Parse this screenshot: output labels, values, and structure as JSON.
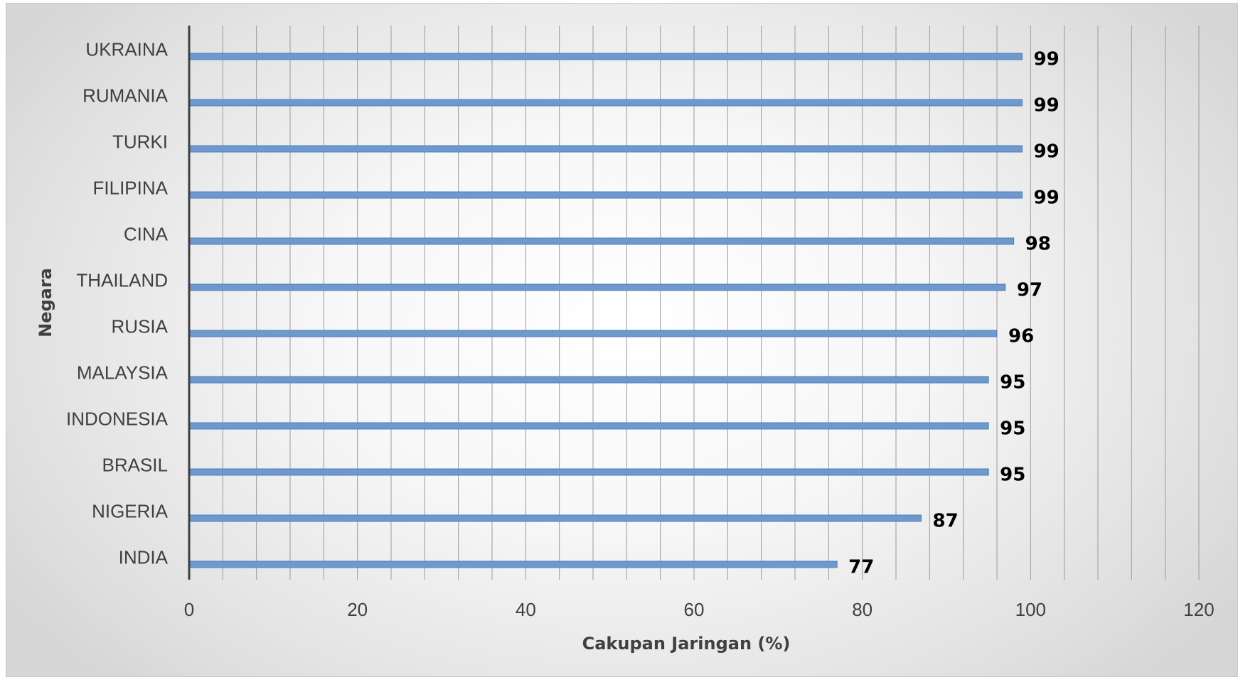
{
  "chart_data": {
    "type": "bar",
    "orientation": "horizontal",
    "categories": [
      "INDIA",
      "NIGERIA",
      "BRASIL",
      "INDONESIA",
      "MALAYSIA",
      "RUSIA",
      "THAILAND",
      "CINA",
      "FILIPINA",
      "TURKI",
      "RUMANIA",
      "UKRAINA"
    ],
    "values": [
      77,
      87,
      95,
      95,
      95,
      96,
      97,
      98,
      99,
      99,
      99,
      99
    ],
    "xlabel": "Cakupan Jaringan (%)",
    "ylabel": "Negara",
    "xlim": [
      0,
      120
    ],
    "xticks": [
      0,
      20,
      40,
      60,
      80,
      100,
      120
    ],
    "grid": "vertical minor",
    "data_labels": true,
    "colors": {
      "bar": "#6f98cc",
      "bar_edge": "#4f7fbf",
      "grid": "#9a9a9a",
      "axis": "#404040"
    }
  }
}
